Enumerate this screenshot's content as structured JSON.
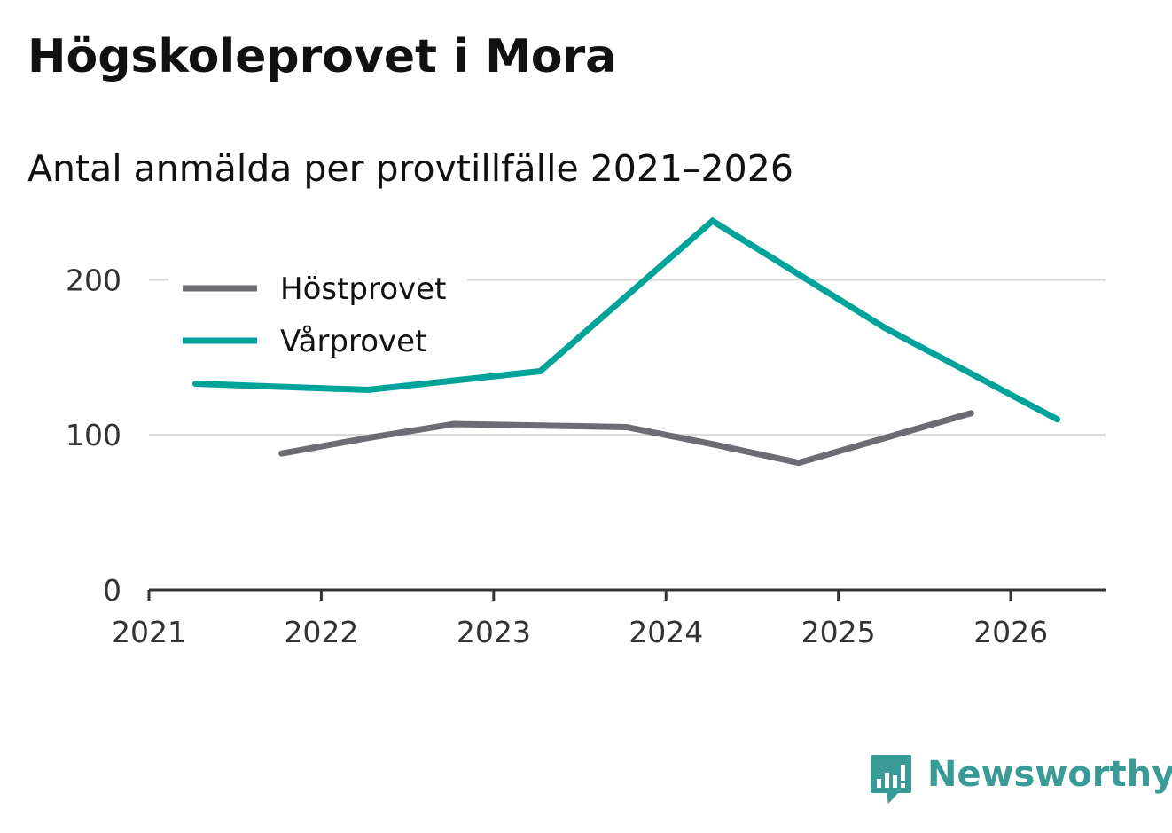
{
  "title": "Högskoleprovet i Mora",
  "subtitle": "Antal anmälda per provtillfälle 2021–2026",
  "brand": {
    "name": "Newsworthy",
    "color": "#3a9a96"
  },
  "chart_data": {
    "type": "line",
    "title": "Högskoleprovet i Mora",
    "subtitle": "Antal anmälda per provtillfälle 2021–2026",
    "xlabel": "",
    "ylabel": "",
    "xlim": [
      2021,
      2026.55
    ],
    "ylim": [
      0,
      250
    ],
    "x_ticks": [
      "2021",
      "2022",
      "2023",
      "2024",
      "2025",
      "2026"
    ],
    "y_ticks": [
      "0",
      "100",
      "200"
    ],
    "grid": true,
    "legend_position": "top-left",
    "series": [
      {
        "name": "Höstprovet",
        "color": "#6d6c73",
        "points": [
          {
            "x": 2021.77,
            "y": 88
          },
          {
            "x": 2022.27,
            "y": 98
          },
          {
            "x": 2022.77,
            "y": 107
          },
          {
            "x": 2023.27,
            "y": 106
          },
          {
            "x": 2023.77,
            "y": 105
          },
          {
            "x": 2024.27,
            "y": 94
          },
          {
            "x": 2024.77,
            "y": 82
          },
          {
            "x": 2025.27,
            "y": 98
          },
          {
            "x": 2025.77,
            "y": 114
          }
        ]
      },
      {
        "name": "Vårprovet",
        "color": "#00a39a",
        "points": [
          {
            "x": 2021.27,
            "y": 133
          },
          {
            "x": 2022.27,
            "y": 129
          },
          {
            "x": 2023.27,
            "y": 141
          },
          {
            "x": 2024.27,
            "y": 238
          },
          {
            "x": 2025.27,
            "y": 169
          },
          {
            "x": 2026.27,
            "y": 110
          }
        ]
      }
    ]
  }
}
